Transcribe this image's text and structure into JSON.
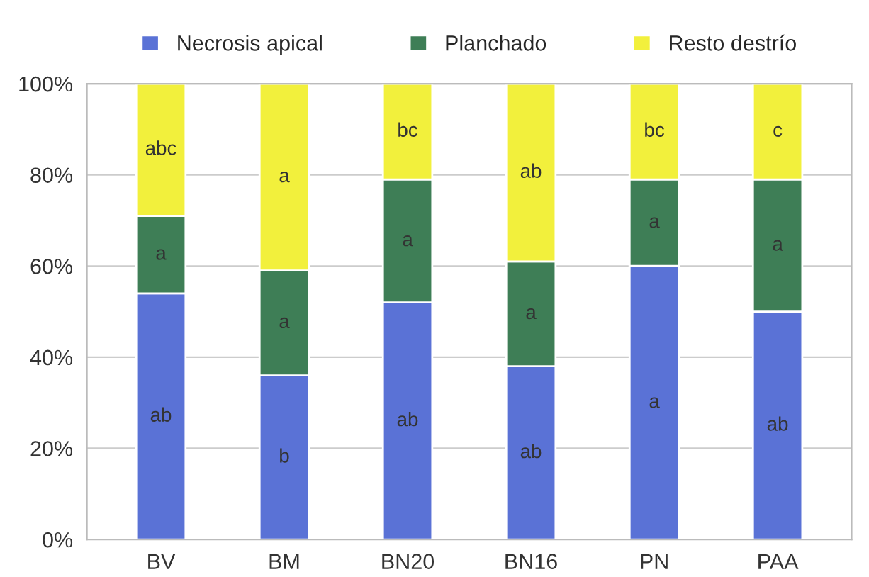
{
  "chart_data": {
    "type": "bar",
    "stacked": true,
    "categories": [
      "BV",
      "BM",
      "BN20",
      "BN16",
      "PN",
      "PAA"
    ],
    "series": [
      {
        "name": "Necrosis apical",
        "color": "#5a72d6",
        "values": [
          54,
          36,
          52,
          38,
          60,
          50
        ],
        "value_labels": [
          "ab",
          "b",
          "ab",
          "ab",
          "a",
          "ab"
        ]
      },
      {
        "name": "Planchado",
        "color": "#3e7e56",
        "values": [
          17,
          23,
          27,
          23,
          19,
          29
        ],
        "value_labels": [
          "a",
          "a",
          "a",
          "a",
          "a",
          "a"
        ]
      },
      {
        "name": "Resto destrío",
        "color": "#f2f03c",
        "values": [
          29,
          41,
          21,
          39,
          21,
          21
        ],
        "value_labels": [
          "abc",
          "a",
          "bc",
          "ab",
          "bc",
          "c"
        ]
      }
    ],
    "ylim": [
      0,
      100
    ],
    "yticks": [
      {
        "value": 0,
        "label": "0%"
      },
      {
        "value": 20,
        "label": "20%"
      },
      {
        "value": 40,
        "label": "40%"
      },
      {
        "value": 60,
        "label": "60%"
      },
      {
        "value": 80,
        "label": "80%"
      },
      {
        "value": 100,
        "label": "100%"
      }
    ],
    "grid": "y",
    "legend": "top"
  }
}
